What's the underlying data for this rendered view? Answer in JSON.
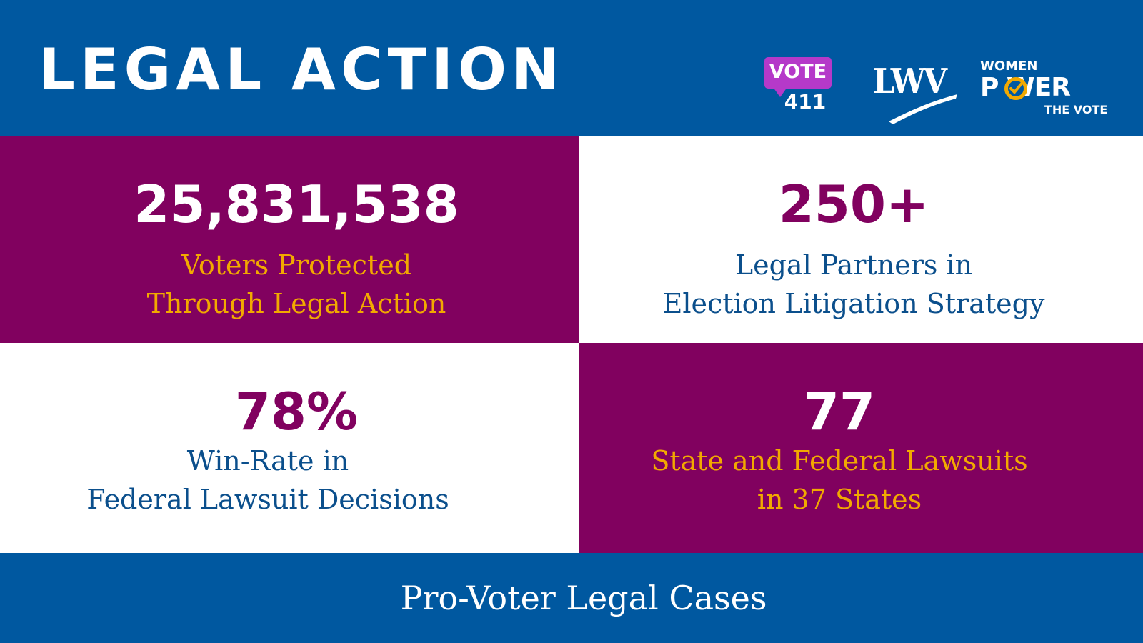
{
  "header": {
    "title": "LEGAL ACTION",
    "logos": {
      "vote411": {
        "line1": "VOTE",
        "line2": "411",
        "color": "#b539c9"
      },
      "lwv": {
        "text": "LWV"
      },
      "women_power_the_vote": {
        "line1": "WOMEN",
        "line2": "P WER",
        "line3": "THE VOTE",
        "accent": "#f2a900"
      }
    }
  },
  "stats": [
    {
      "value": "25,831,538",
      "label_line1": "Voters Protected",
      "label_line2": "Through Legal Action"
    },
    {
      "value": "250+",
      "label_line1": "Legal Partners in",
      "label_line2": "Election Litigation Strategy"
    },
    {
      "value": "78%",
      "label_line1": "Win-Rate in",
      "label_line2": "Federal Lawsuit Decisions"
    },
    {
      "value": "77",
      "label_line1": "State and Federal Lawsuits",
      "label_line2": "in 37 States"
    }
  ],
  "footer": {
    "text": "Pro-Voter Legal Cases"
  },
  "colors": {
    "blue": "#0058a0",
    "purple": "#81015f",
    "gold": "#f2a900",
    "label_blue": "#0b4f8c",
    "white": "#ffffff"
  }
}
